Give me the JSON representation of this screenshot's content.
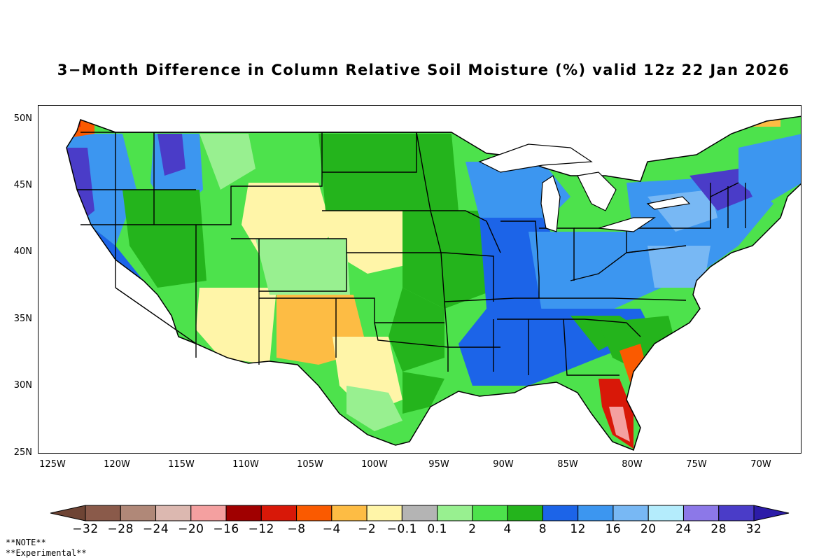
{
  "title": "3-Month Difference in Column Relative Soil Moisture (%) valid 12z 22 Jan 2026",
  "map": {
    "region": "Contiguous United States",
    "lat_labels": [
      "50N",
      "45N",
      "40N",
      "35N",
      "30N",
      "25N"
    ],
    "lon_labels": [
      "125W",
      "120W",
      "115W",
      "110W",
      "105W",
      "100W",
      "95W",
      "90W",
      "85W",
      "80W",
      "75W",
      "70W"
    ],
    "lat_values": [
      50,
      45,
      40,
      35,
      30,
      25
    ],
    "lon_values": [
      -125,
      -120,
      -115,
      -110,
      -105,
      -100,
      -95,
      -90,
      -85,
      -80,
      -75,
      -70
    ],
    "extent": {
      "lon_min": -126.2,
      "lon_max": -66.8,
      "lat_min": 25,
      "lat_max": 51
    }
  },
  "colorbar": {
    "colors": [
      "#8a5a4a",
      "#b08878",
      "#dcb8b0",
      "#f4a0a0",
      "#a00000",
      "#d81808",
      "#fa5a00",
      "#fdbc44",
      "#fff5a8",
      "#b4b4b4",
      "#98f090",
      "#4de24c",
      "#24b41c",
      "#1c64e8",
      "#3c96f0",
      "#78b8f4",
      "#b4ecfc",
      "#8c78e8",
      "#4a3cc8"
    ],
    "left_arrow_color": "#6e4434",
    "right_arrow_color": "#2c1ca8",
    "labels": [
      "-32",
      "-28",
      "-24",
      "-20",
      "-16",
      "-12",
      "-8",
      "-4",
      "-2",
      "-0.1",
      "0.1",
      "2",
      "4",
      "8",
      "12",
      "16",
      "20",
      "24",
      "28",
      "32"
    ]
  },
  "notes": {
    "line1": "**NOTE**",
    "line2": "**Experimental**"
  }
}
